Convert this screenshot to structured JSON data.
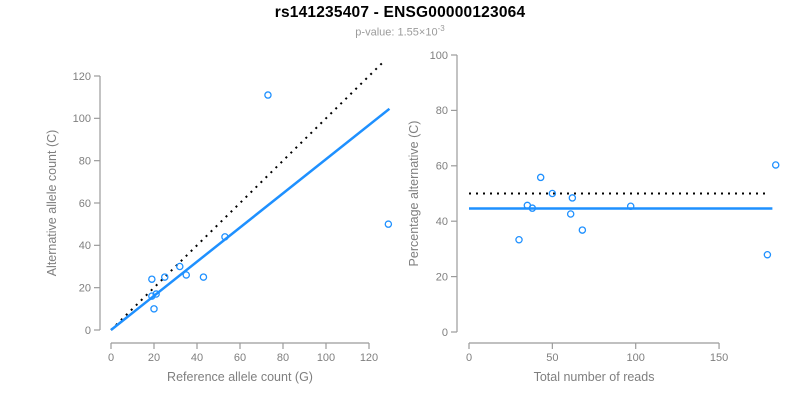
{
  "header": {
    "title": "rs141235407 - ENSG00000123064",
    "subtitle_text": "p-value: 1.55×10",
    "subtitle_exponent": "-3"
  },
  "colors": {
    "points": "#1E90FF",
    "solid_line": "#1E90FF",
    "dotted_line": "#000000",
    "axis_line": "#9b9b9b",
    "tick_text": "#7f7f7f",
    "label_text": "#7f7f7f",
    "title": "#000000",
    "subtitle": "#9b9b9b"
  },
  "chart_data": [
    {
      "type": "scatter",
      "panel": "left",
      "xlabel": "Reference allele count (G)",
      "ylabel": "Alternative allele count (C)",
      "xlim": [
        0,
        130
      ],
      "ylim": [
        0,
        128
      ],
      "xticks": [
        0,
        20,
        40,
        60,
        80,
        100,
        120
      ],
      "yticks": [
        0,
        20,
        40,
        60,
        80,
        100,
        120
      ],
      "grid": false,
      "marker": "open-circle",
      "points": [
        [
          19,
          24
        ],
        [
          25,
          25
        ],
        [
          32,
          30
        ],
        [
          35,
          26
        ],
        [
          43,
          25
        ],
        [
          20,
          10
        ],
        [
          19,
          16
        ],
        [
          21,
          17
        ],
        [
          53,
          44
        ],
        [
          73,
          111
        ],
        [
          129,
          50
        ]
      ],
      "lines": [
        {
          "name": "identity-line",
          "style": "dotted",
          "color": "#000000",
          "x": [
            0,
            126
          ],
          "y": [
            0,
            126
          ]
        },
        {
          "name": "regression-line",
          "style": "solid",
          "color": "#1E90FF",
          "x": [
            0,
            129.5
          ],
          "y": [
            0,
            104.5
          ]
        }
      ]
    },
    {
      "type": "scatter",
      "panel": "right",
      "xlabel": "Total number of reads",
      "ylabel": "Percentage alternative (C)",
      "xlim": [
        0,
        190
      ],
      "ylim": [
        0,
        100
      ],
      "xticks": [
        0,
        50,
        100,
        150
      ],
      "yticks": [
        0,
        20,
        40,
        60,
        80,
        100
      ],
      "grid": false,
      "marker": "open-circle",
      "points": [
        [
          43,
          55.8
        ],
        [
          50,
          50.0
        ],
        [
          62,
          48.4
        ],
        [
          61,
          42.6
        ],
        [
          68,
          36.8
        ],
        [
          30,
          33.3
        ],
        [
          35,
          45.7
        ],
        [
          38,
          44.7
        ],
        [
          97,
          45.4
        ],
        [
          184,
          60.3
        ],
        [
          179,
          27.9
        ]
      ],
      "lines": [
        {
          "name": "expected-percentage-line",
          "style": "dotted",
          "color": "#000000",
          "x": [
            0,
            179
          ],
          "y": [
            50,
            50
          ]
        },
        {
          "name": "mean-percentage-line",
          "style": "solid",
          "color": "#1E90FF",
          "x": [
            0,
            182
          ],
          "y": [
            44.6,
            44.6
          ]
        }
      ]
    }
  ]
}
